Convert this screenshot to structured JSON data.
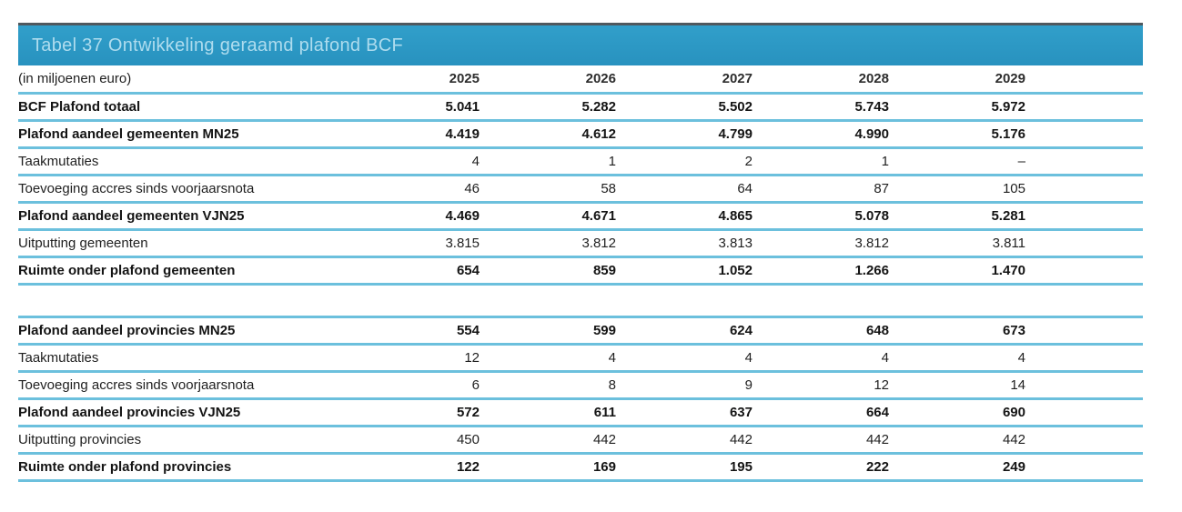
{
  "table": {
    "title": "Tabel 37 Ontwikkeling geraamd plafond BCF",
    "unit_label": "(in miljoenen euro)",
    "years": [
      "2025",
      "2026",
      "2027",
      "2028",
      "2029"
    ],
    "rows": [
      {
        "label": "BCF Plafond totaal",
        "bold": true,
        "values": [
          "5.041",
          "5.282",
          "5.502",
          "5.743",
          "5.972"
        ]
      },
      {
        "label": "Plafond aandeel gemeenten MN25",
        "bold": true,
        "values": [
          "4.419",
          "4.612",
          "4.799",
          "4.990",
          "5.176"
        ]
      },
      {
        "label": "Taakmutaties",
        "bold": false,
        "values": [
          "4",
          "1",
          "2",
          "1",
          "–"
        ]
      },
      {
        "label": "Toevoeging accres sinds voorjaarsnota",
        "bold": false,
        "values": [
          "46",
          "58",
          "64",
          "87",
          "105"
        ]
      },
      {
        "label": "Plafond aandeel gemeenten VJN25",
        "bold": true,
        "values": [
          "4.469",
          "4.671",
          "4.865",
          "5.078",
          "5.281"
        ]
      },
      {
        "label": "Uitputting gemeenten",
        "bold": false,
        "values": [
          "3.815",
          "3.812",
          "3.813",
          "3.812",
          "3.811"
        ]
      },
      {
        "label": "Ruimte onder plafond gemeenten",
        "bold": true,
        "values": [
          "654",
          "859",
          "1.052",
          "1.266",
          "1.470"
        ]
      },
      {
        "type": "spacer"
      },
      {
        "label": "Plafond aandeel provincies MN25",
        "bold": true,
        "values": [
          "554",
          "599",
          "624",
          "648",
          "673"
        ]
      },
      {
        "label": "Taakmutaties",
        "bold": false,
        "values": [
          "12",
          "4",
          "4",
          "4",
          "4"
        ]
      },
      {
        "label": "Toevoeging accres sinds voorjaarsnota",
        "bold": false,
        "values": [
          "6",
          "8",
          "9",
          "12",
          "14"
        ]
      },
      {
        "label": "Plafond aandeel provincies VJN25",
        "bold": true,
        "values": [
          "572",
          "611",
          "637",
          "664",
          "690"
        ]
      },
      {
        "label": "Uitputting provincies",
        "bold": false,
        "values": [
          "450",
          "442",
          "442",
          "442",
          "442"
        ]
      },
      {
        "label": "Ruimte onder plafond provincies",
        "bold": true,
        "values": [
          "122",
          "169",
          "195",
          "222",
          "249"
        ]
      }
    ]
  },
  "colors": {
    "header_bg": "#2892bf",
    "header_bg_light": "#319fca",
    "header_top_edge": "#4f585e",
    "header_text": "#aedcee",
    "rule": "#6cc0dd",
    "text": "#1f1f1f"
  }
}
